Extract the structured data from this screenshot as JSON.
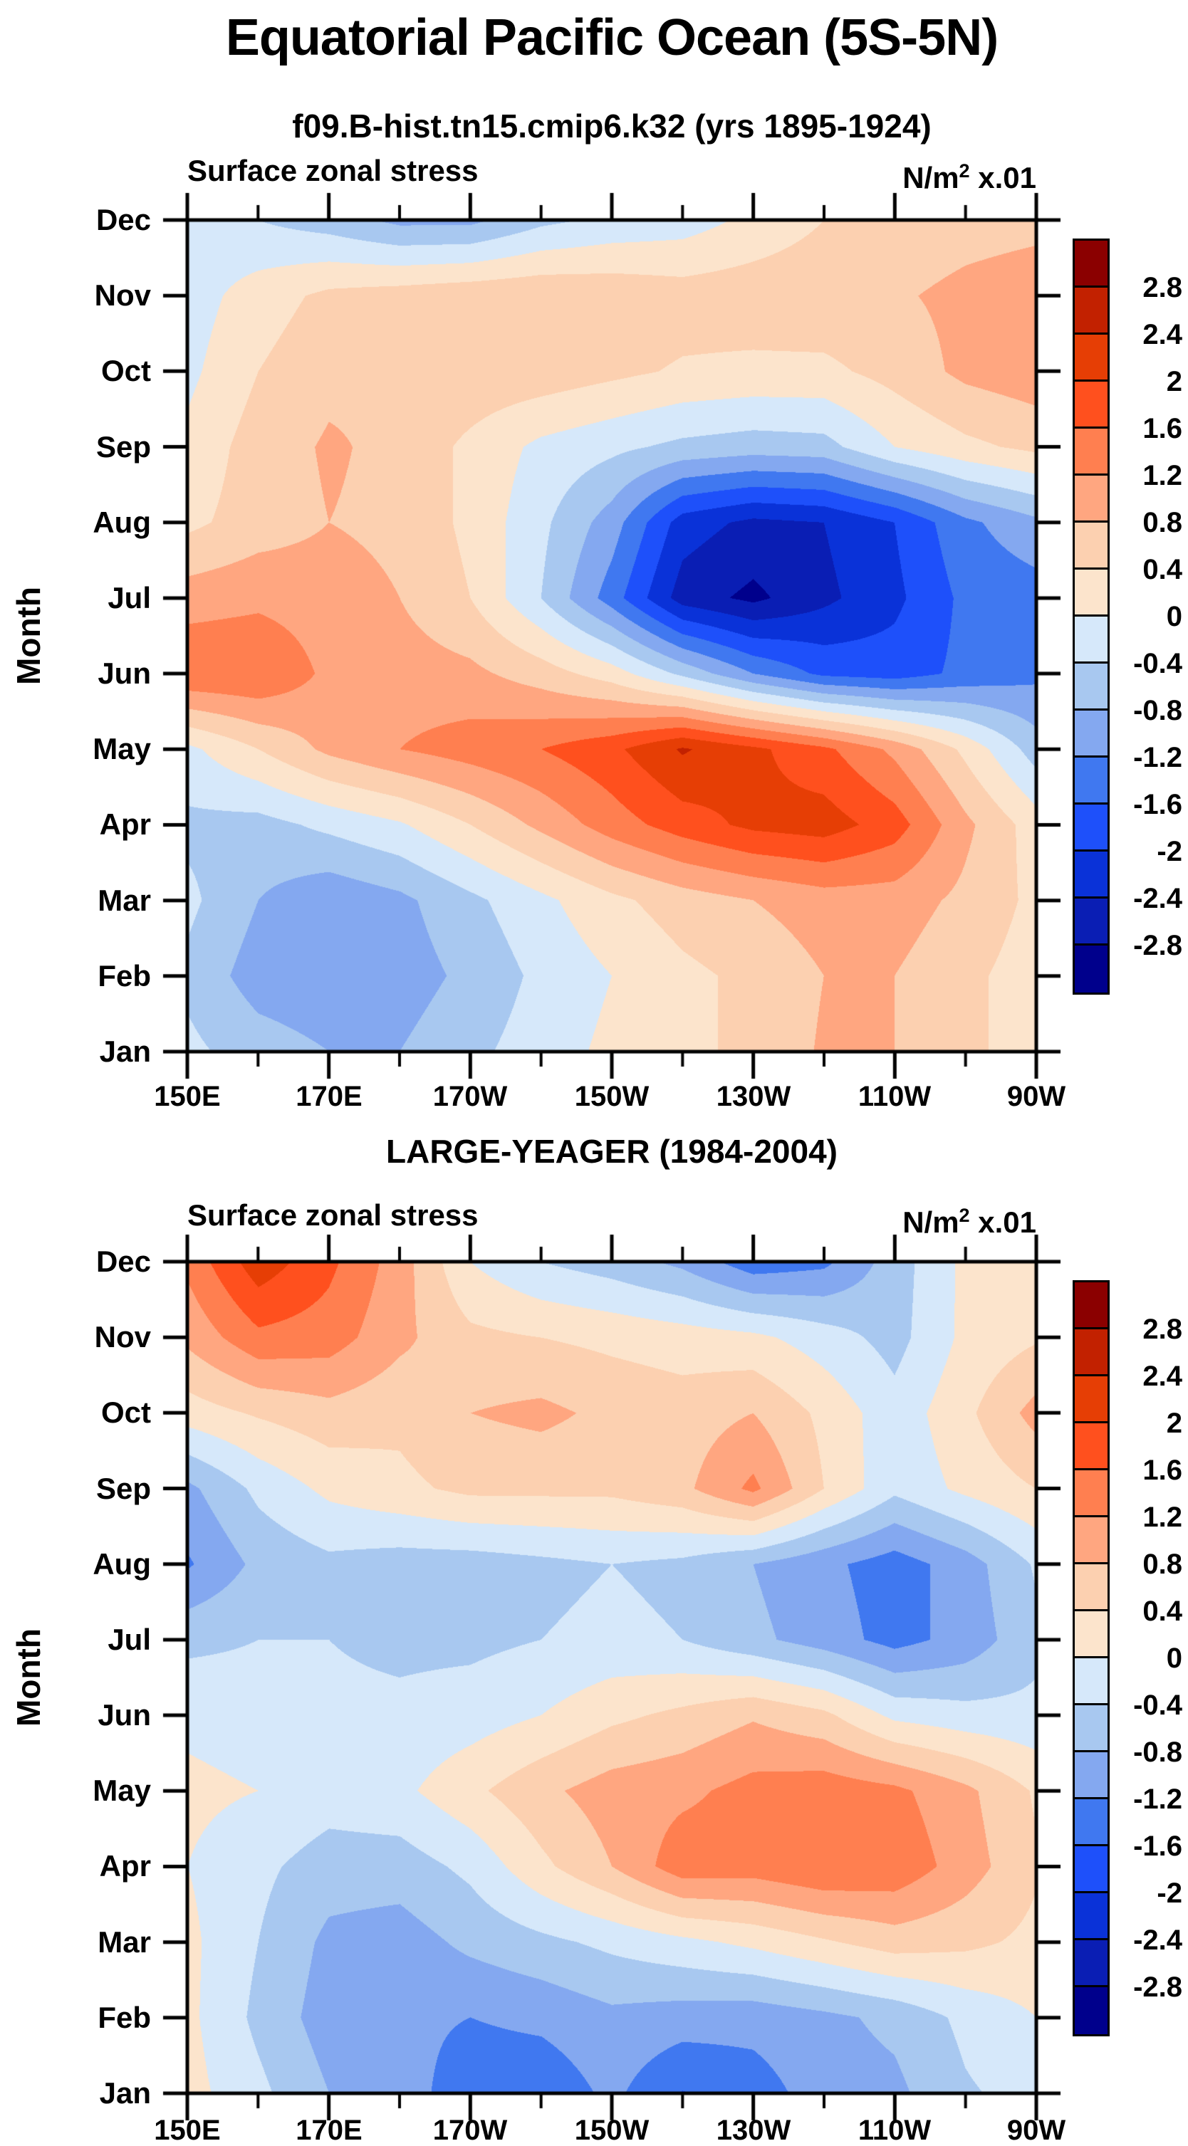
{
  "page_title": "Equatorial Pacific Ocean (5S-5N)",
  "ylabel": "Month",
  "colorbar": {
    "tick_labels": [
      "2.8",
      "2.4",
      "2",
      "1.6",
      "1.2",
      "0.8",
      "0.4",
      "0",
      "-0.4",
      "-0.8",
      "-1.2",
      "-1.6",
      "-2",
      "-2.4",
      "-2.8"
    ],
    "colors_top_to_bottom": [
      "#8B0000",
      "#C22100",
      "#E63E05",
      "#FF501E",
      "#FF7F50",
      "#FFA680",
      "#FCD0B0",
      "#FCE4CC",
      "#D6E8FA",
      "#A8C8F0",
      "#84A8F0",
      "#4078F0",
      "#1E50FA",
      "#0A32D8",
      "#0A1EB4",
      "#00008C"
    ]
  },
  "chart_data": [
    {
      "type": "contour",
      "title": "f09.B-hist.tn15.cmip6.k32 (yrs 1895-1924)",
      "header_left": "Surface zonal stress",
      "units_base": "N/m",
      "units_sup": "2",
      "units_tail": " x.01",
      "xlabel_ticks": [
        "150E",
        "170E",
        "170W",
        "150W",
        "130W",
        "110W",
        "90W"
      ],
      "x_deg_east": [
        150,
        160,
        170,
        180,
        190,
        200,
        210,
        220,
        230,
        240,
        250,
        260,
        270
      ],
      "months": [
        "Jan",
        "Feb",
        "Mar",
        "Apr",
        "May",
        "Jun",
        "Jul",
        "Aug",
        "Sep",
        "Oct",
        "Nov",
        "Dec"
      ],
      "levels": [
        -2.8,
        -2.4,
        -2.0,
        -1.6,
        -1.2,
        -0.8,
        -0.4,
        0.0,
        0.4,
        0.8,
        1.2,
        1.6,
        2.0,
        2.4,
        2.8
      ],
      "values": [
        [
          -0.3,
          -0.6,
          -0.8,
          -0.8,
          -0.5,
          -0.2,
          0.1,
          0.3,
          0.5,
          0.85,
          0.8,
          0.5,
          0.2
        ],
        [
          -0.5,
          -1.0,
          -1.1,
          -1.0,
          -0.7,
          -0.3,
          0.0,
          0.3,
          0.5,
          0.8,
          0.8,
          0.5,
          0.2
        ],
        [
          -0.3,
          -0.8,
          -1.1,
          -0.9,
          -0.5,
          -0.1,
          0.3,
          0.6,
          0.8,
          1.0,
          1.0,
          0.7,
          0.3
        ],
        [
          -0.5,
          -0.55,
          -0.3,
          -0.05,
          0.4,
          0.9,
          1.4,
          1.8,
          2.1,
          2.2,
          1.8,
          0.9,
          0.2
        ],
        [
          -0.1,
          0.4,
          0.9,
          1.2,
          1.4,
          1.6,
          1.9,
          2.45,
          2.1,
          1.7,
          1.1,
          0.3,
          -0.6
        ],
        [
          1.58,
          1.6,
          1.1,
          1.0,
          0.9,
          0.6,
          0.2,
          -0.5,
          -1.2,
          -1.7,
          -1.8,
          -1.5,
          -1.3
        ],
        [
          1.0,
          1.1,
          1.0,
          0.8,
          0.4,
          -0.4,
          -1.4,
          -2.6,
          -2.9,
          -2.5,
          -2.1,
          -1.5,
          -1.4
        ],
        [
          0.3,
          0.6,
          0.8,
          0.7,
          0.3,
          -0.3,
          -1.0,
          -2.2,
          -2.5,
          -2.4,
          -2.0,
          -1.3,
          -0.9
        ],
        [
          0.1,
          0.6,
          0.85,
          0.7,
          0.3,
          -0.1,
          -0.3,
          -0.5,
          -0.6,
          -0.55,
          0.0,
          0.3,
          0.5
        ],
        [
          -0.1,
          0.4,
          0.7,
          0.75,
          0.7,
          0.65,
          0.5,
          0.35,
          0.3,
          0.3,
          0.55,
          0.9,
          1.05
        ],
        [
          -0.2,
          0.2,
          0.5,
          0.6,
          0.7,
          0.75,
          0.7,
          0.6,
          0.65,
          0.7,
          0.75,
          0.9,
          1.0
        ],
        [
          -0.2,
          -0.4,
          -0.6,
          -0.9,
          -0.9,
          -0.5,
          -0.3,
          -0.2,
          0.1,
          0.4,
          0.55,
          0.65,
          0.7
        ]
      ]
    },
    {
      "type": "contour",
      "title": "LARGE-YEAGER (1984-2004)",
      "header_left": "Surface zonal stress",
      "units_base": "N/m",
      "units_sup": "2",
      "units_tail": " x.01",
      "xlabel_ticks": [
        "150E",
        "170E",
        "170W",
        "150W",
        "130W",
        "110W",
        "90W"
      ],
      "x_deg_east": [
        150,
        160,
        170,
        180,
        190,
        200,
        210,
        220,
        230,
        240,
        250,
        260,
        270
      ],
      "months": [
        "Jan",
        "Feb",
        "Mar",
        "Apr",
        "May",
        "Jun",
        "Jul",
        "Aug",
        "Sep",
        "Oct",
        "Nov",
        "Dec"
      ],
      "levels": [
        -2.8,
        -2.4,
        -2.0,
        -1.6,
        -1.2,
        -0.8,
        -0.4,
        0.0,
        0.4,
        0.8,
        1.2,
        1.6,
        2.0,
        2.4,
        2.8
      ],
      "values": [
        [
          0.15,
          -0.3,
          -0.8,
          -1.0,
          -1.45,
          -1.5,
          -1.1,
          -1.62,
          -1.4,
          -1.0,
          -0.9,
          -0.45,
          -0.25
        ],
        [
          0.1,
          -0.5,
          -1.0,
          -1.1,
          -1.2,
          -1.1,
          -0.9,
          -1.0,
          -1.05,
          -0.9,
          -0.7,
          -0.3,
          0.0
        ],
        [
          0.1,
          -0.4,
          -0.9,
          -1.0,
          -0.7,
          -0.5,
          -0.3,
          -0.1,
          0.1,
          0.35,
          0.6,
          0.5,
          0.3
        ],
        [
          0.0,
          -0.3,
          -0.6,
          -0.6,
          -0.3,
          0.3,
          0.8,
          1.45,
          1.4,
          1.6,
          1.5,
          1.0,
          0.45
        ],
        [
          0.1,
          0.0,
          -0.2,
          -0.1,
          0.3,
          0.7,
          1.0,
          1.1,
          1.35,
          1.45,
          1.3,
          0.9,
          0.35
        ],
        [
          -0.1,
          -0.2,
          -0.3,
          -0.3,
          -0.2,
          0.0,
          0.3,
          0.5,
          0.75,
          0.5,
          -0.1,
          -0.25,
          -0.3
        ],
        [
          -0.5,
          -0.4,
          -0.4,
          -0.5,
          -0.5,
          -0.4,
          -0.3,
          -0.4,
          -0.7,
          -1.0,
          -1.35,
          -1.05,
          -0.5
        ],
        [
          -1.25,
          -0.7,
          -0.5,
          -0.6,
          -0.6,
          -0.5,
          -0.4,
          -0.5,
          -0.8,
          -1.1,
          -1.4,
          -1.0,
          -0.35
        ],
        [
          -0.9,
          -0.3,
          0.1,
          0.3,
          0.5,
          0.5,
          0.5,
          0.7,
          1.3,
          0.4,
          -0.3,
          0.1,
          0.4
        ],
        [
          0.2,
          0.45,
          0.65,
          0.5,
          0.8,
          0.9,
          0.7,
          0.6,
          0.8,
          0.3,
          -0.25,
          0.3,
          0.95
        ],
        [
          0.9,
          1.5,
          1.4,
          0.9,
          0.5,
          0.4,
          0.3,
          0.2,
          0.1,
          -0.2,
          -0.55,
          0.1,
          0.35
        ],
        [
          1.3,
          2.25,
          1.7,
          1.0,
          0.0,
          -0.4,
          -0.6,
          -0.9,
          -1.45,
          -1.3,
          -0.6,
          0.1,
          0.25
        ]
      ]
    }
  ]
}
